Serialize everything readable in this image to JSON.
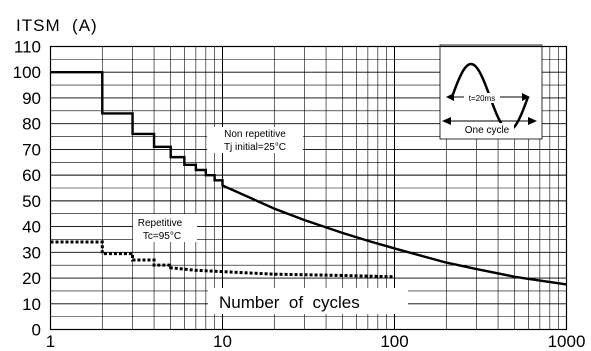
{
  "chart_data": {
    "type": "line",
    "ylabel": "ITSM  (A)",
    "xlabel": "Number  of  cycles",
    "x_scale": "log",
    "xlim": [
      1,
      1000
    ],
    "ylim": [
      0,
      110
    ],
    "grid": true,
    "x_tick_labels": [
      {
        "value": 1,
        "label": "1"
      },
      {
        "value": 10,
        "label": "10"
      },
      {
        "value": 100,
        "label": "100"
      },
      {
        "value": 1000,
        "label": "1000"
      }
    ],
    "y_ticks": [
      0,
      10,
      20,
      30,
      40,
      50,
      60,
      70,
      80,
      90,
      100,
      110
    ],
    "series": [
      {
        "name": "Non repetitive",
        "style": "solid",
        "color": "#000000",
        "points": [
          [
            1,
            100
          ],
          [
            2,
            100
          ],
          [
            2,
            84
          ],
          [
            3,
            84
          ],
          [
            3,
            76
          ],
          [
            4,
            76
          ],
          [
            4,
            71
          ],
          [
            5,
            71
          ],
          [
            5,
            67
          ],
          [
            6,
            67
          ],
          [
            6,
            64
          ],
          [
            7,
            64
          ],
          [
            7,
            62
          ],
          [
            8,
            62
          ],
          [
            8,
            60
          ],
          [
            9,
            60
          ],
          [
            9,
            58
          ],
          [
            10,
            58
          ],
          [
            10,
            56
          ],
          [
            20,
            47
          ],
          [
            30,
            42.5
          ],
          [
            50,
            37.5
          ],
          [
            70,
            34.5
          ],
          [
            100,
            31.5
          ],
          [
            200,
            26
          ],
          [
            300,
            23.5
          ],
          [
            500,
            20.5
          ],
          [
            700,
            19
          ],
          [
            1000,
            17.5
          ]
        ]
      },
      {
        "name": "Repetitive",
        "style": "dotted",
        "color": "#000000",
        "points": [
          [
            1,
            34
          ],
          [
            2,
            34
          ],
          [
            2,
            29.5
          ],
          [
            3,
            29.5
          ],
          [
            3,
            27
          ],
          [
            4,
            27
          ],
          [
            4,
            25
          ],
          [
            5,
            25
          ],
          [
            5,
            24
          ],
          [
            7,
            23
          ],
          [
            10,
            22.5
          ],
          [
            20,
            21.5
          ],
          [
            50,
            21
          ],
          [
            100,
            20.5
          ]
        ]
      }
    ],
    "annotations": [
      {
        "lines": [
          "Non repetitive",
          "Tj initial=25°C"
        ],
        "series": "Non repetitive"
      },
      {
        "lines": [
          "Repetitive",
          "Tc=95°C"
        ],
        "series": "Repetitive"
      }
    ],
    "inset": {
      "time_label": "t=20ms",
      "caption": "One cycle"
    }
  }
}
